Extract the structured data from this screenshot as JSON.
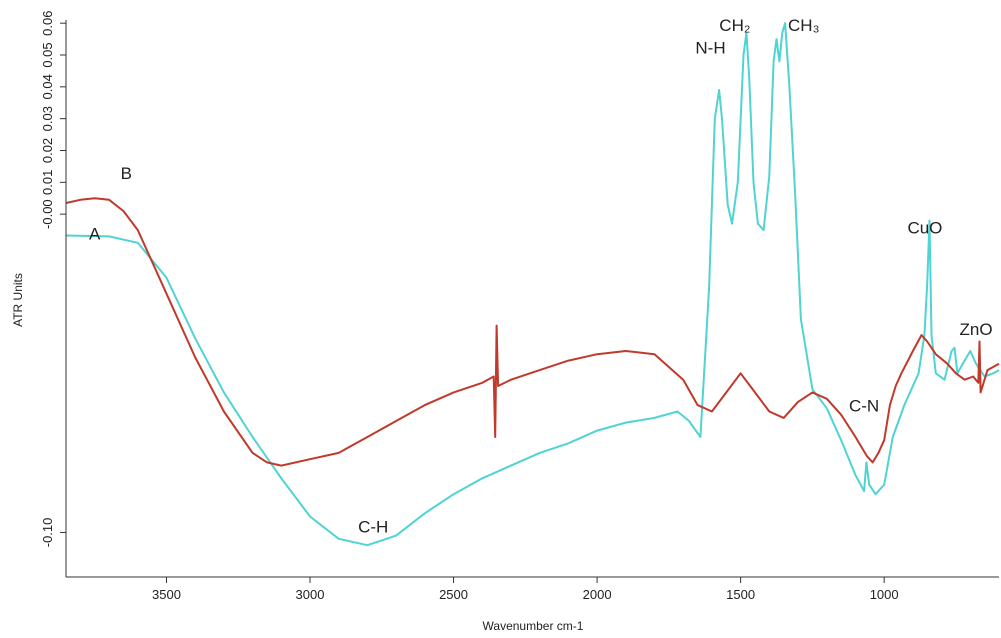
{
  "chart_data": {
    "type": "line",
    "title": "",
    "xlabel": "Wavenumber cm-1",
    "ylabel": "ATR Units",
    "xlim": [
      3850,
      600
    ],
    "ylim": [
      -0.114,
      0.061
    ],
    "x_reversed": true,
    "grid": false,
    "x_ticks": [
      3500,
      3000,
      2500,
      2000,
      1500,
      1000
    ],
    "x_tick_labels": [
      "3500",
      "3000",
      "2500",
      "2000",
      "1500",
      "1000"
    ],
    "y_ticks": [
      -0.1,
      0.0,
      0.01,
      0.02,
      0.03,
      0.04,
      0.05,
      0.06
    ],
    "y_tick_labels": [
      "-0.10",
      "-0.00",
      "0.01",
      "0.02",
      "0.03",
      "0.04",
      "0.05",
      "0.06"
    ],
    "series": [
      {
        "name": "A",
        "color": "#4fd3d3",
        "points": [
          [
            3850,
            -0.0067
          ],
          [
            3700,
            -0.007
          ],
          [
            3600,
            -0.009
          ],
          [
            3500,
            -0.02
          ],
          [
            3400,
            -0.039
          ],
          [
            3300,
            -0.056
          ],
          [
            3200,
            -0.07
          ],
          [
            3100,
            -0.083
          ],
          [
            3000,
            -0.095
          ],
          [
            2900,
            -0.102
          ],
          [
            2800,
            -0.104
          ],
          [
            2700,
            -0.101
          ],
          [
            2600,
            -0.094
          ],
          [
            2500,
            -0.088
          ],
          [
            2400,
            -0.083
          ],
          [
            2300,
            -0.079
          ],
          [
            2200,
            -0.075
          ],
          [
            2100,
            -0.072
          ],
          [
            2000,
            -0.068
          ],
          [
            1900,
            -0.0655
          ],
          [
            1800,
            -0.064
          ],
          [
            1720,
            -0.062
          ],
          [
            1680,
            -0.065
          ],
          [
            1640,
            -0.07
          ],
          [
            1610,
            -0.023
          ],
          [
            1590,
            0.03
          ],
          [
            1575,
            0.039
          ],
          [
            1565,
            0.03
          ],
          [
            1545,
            0.003
          ],
          [
            1530,
            -0.003
          ],
          [
            1510,
            0.01
          ],
          [
            1490,
            0.05
          ],
          [
            1480,
            0.057
          ],
          [
            1470,
            0.043
          ],
          [
            1455,
            0.01
          ],
          [
            1440,
            -0.003
          ],
          [
            1420,
            -0.005
          ],
          [
            1400,
            0.012
          ],
          [
            1385,
            0.048
          ],
          [
            1375,
            0.055
          ],
          [
            1365,
            0.048
          ],
          [
            1355,
            0.057
          ],
          [
            1345,
            0.06
          ],
          [
            1330,
            0.04
          ],
          [
            1310,
            0.006
          ],
          [
            1290,
            -0.033
          ],
          [
            1250,
            -0.055
          ],
          [
            1200,
            -0.061
          ],
          [
            1150,
            -0.071
          ],
          [
            1100,
            -0.082
          ],
          [
            1070,
            -0.087
          ],
          [
            1062,
            -0.078
          ],
          [
            1052,
            -0.085
          ],
          [
            1030,
            -0.088
          ],
          [
            1000,
            -0.085
          ],
          [
            970,
            -0.07
          ],
          [
            930,
            -0.06
          ],
          [
            880,
            -0.05
          ],
          [
            860,
            -0.038
          ],
          [
            850,
            -0.022
          ],
          [
            842,
            -0.002
          ],
          [
            835,
            -0.038
          ],
          [
            820,
            -0.05
          ],
          [
            790,
            -0.052
          ],
          [
            765,
            -0.043
          ],
          [
            755,
            -0.042
          ],
          [
            745,
            -0.05
          ],
          [
            720,
            -0.046
          ],
          [
            700,
            -0.043
          ],
          [
            680,
            -0.047
          ],
          [
            650,
            -0.051
          ],
          [
            620,
            -0.05
          ],
          [
            600,
            -0.049
          ]
        ]
      },
      {
        "name": "B",
        "color": "#c0392b",
        "points": [
          [
            3850,
            0.0035
          ],
          [
            3800,
            0.0045
          ],
          [
            3750,
            0.005
          ],
          [
            3700,
            0.0045
          ],
          [
            3650,
            0.001
          ],
          [
            3600,
            -0.005
          ],
          [
            3500,
            -0.025
          ],
          [
            3400,
            -0.045
          ],
          [
            3300,
            -0.062
          ],
          [
            3200,
            -0.075
          ],
          [
            3150,
            -0.078
          ],
          [
            3100,
            -0.079
          ],
          [
            3000,
            -0.077
          ],
          [
            2900,
            -0.075
          ],
          [
            2800,
            -0.07
          ],
          [
            2700,
            -0.065
          ],
          [
            2600,
            -0.06
          ],
          [
            2500,
            -0.056
          ],
          [
            2400,
            -0.053
          ],
          [
            2360,
            -0.051
          ],
          [
            2355,
            -0.07
          ],
          [
            2350,
            -0.035
          ],
          [
            2345,
            -0.054
          ],
          [
            2300,
            -0.052
          ],
          [
            2200,
            -0.049
          ],
          [
            2100,
            -0.046
          ],
          [
            2000,
            -0.044
          ],
          [
            1900,
            -0.043
          ],
          [
            1800,
            -0.044
          ],
          [
            1700,
            -0.052
          ],
          [
            1650,
            -0.06
          ],
          [
            1600,
            -0.062
          ],
          [
            1550,
            -0.056
          ],
          [
            1500,
            -0.05
          ],
          [
            1450,
            -0.056
          ],
          [
            1400,
            -0.062
          ],
          [
            1350,
            -0.064
          ],
          [
            1300,
            -0.059
          ],
          [
            1250,
            -0.056
          ],
          [
            1200,
            -0.058
          ],
          [
            1150,
            -0.063
          ],
          [
            1100,
            -0.07
          ],
          [
            1060,
            -0.076
          ],
          [
            1040,
            -0.078
          ],
          [
            1020,
            -0.075
          ],
          [
            1000,
            -0.071
          ],
          [
            980,
            -0.06
          ],
          [
            960,
            -0.054
          ],
          [
            940,
            -0.05
          ],
          [
            900,
            -0.043
          ],
          [
            870,
            -0.038
          ],
          [
            850,
            -0.04
          ],
          [
            820,
            -0.044
          ],
          [
            780,
            -0.047
          ],
          [
            750,
            -0.05
          ],
          [
            720,
            -0.052
          ],
          [
            690,
            -0.051
          ],
          [
            672,
            -0.053
          ],
          [
            668,
            -0.04
          ],
          [
            664,
            -0.056
          ],
          [
            640,
            -0.049
          ],
          [
            620,
            -0.048
          ],
          [
            600,
            -0.047
          ]
        ]
      }
    ],
    "annotations": [
      {
        "text": "N-H",
        "x": 1605,
        "y": 0.0505
      },
      {
        "text": "CH₂",
        "x": 1520,
        "y": 0.0575
      },
      {
        "text": "CH₃",
        "x": 1280,
        "y": 0.0575
      },
      {
        "text": "C-H",
        "x": 2780,
        "y": -0.1
      },
      {
        "text": "C-N",
        "x": 1070,
        "y": -0.062
      },
      {
        "text": "CuO",
        "x": 858,
        "y": -0.006
      },
      {
        "text": "ZnO",
        "x": 680,
        "y": -0.038
      },
      {
        "text": "B",
        "x": 3640,
        "y": 0.011
      },
      {
        "text": "A",
        "x": 3750,
        "y": -0.008
      }
    ]
  }
}
